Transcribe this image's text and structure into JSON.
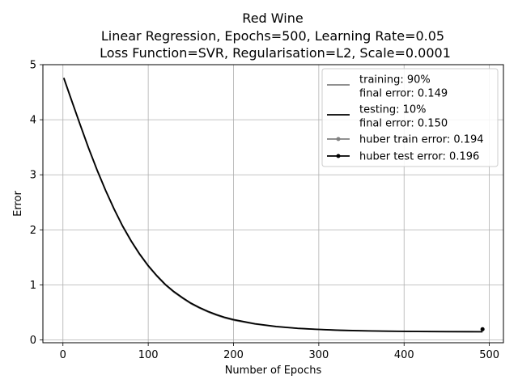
{
  "chart_data": {
    "type": "line",
    "title_lines": [
      "Red Wine",
      "Linear Regression, Epochs=500, Learning Rate=0.05",
      "Loss Function=SVR, Regularisation=L2, Scale=0.0001"
    ],
    "xlabel": "Number of Epochs",
    "ylabel": "Error",
    "xlim": [
      -23.5,
      516.5
    ],
    "ylim": [
      -0.05,
      5.0
    ],
    "x_ticks": [
      0,
      100,
      200,
      300,
      400,
      500
    ],
    "y_ticks": [
      0,
      1,
      2,
      3,
      4,
      5
    ],
    "grid": true,
    "legend_position": "top-right",
    "series": [
      {
        "name": "training: 90%\nfinal error: 0.149",
        "color": "#808080",
        "marker": "none",
        "x": [
          1,
          10,
          20,
          30,
          40,
          50,
          60,
          70,
          80,
          90,
          100,
          110,
          120,
          130,
          140,
          150,
          160,
          170,
          180,
          190,
          200,
          225,
          250,
          275,
          300,
          325,
          350,
          375,
          400,
          425,
          450,
          475,
          492
        ],
        "y": [
          4.75,
          4.35,
          3.91,
          3.48,
          3.08,
          2.71,
          2.37,
          2.06,
          1.79,
          1.55,
          1.34,
          1.16,
          1.0,
          0.87,
          0.76,
          0.66,
          0.58,
          0.51,
          0.45,
          0.4,
          0.36,
          0.29,
          0.24,
          0.21,
          0.19,
          0.175,
          0.166,
          0.16,
          0.156,
          0.153,
          0.151,
          0.15,
          0.149
        ]
      },
      {
        "name": "testing: 10%\nfinal error: 0.150",
        "color": "#000000",
        "marker": "none",
        "x": [
          1,
          10,
          20,
          30,
          40,
          50,
          60,
          70,
          80,
          90,
          100,
          110,
          120,
          130,
          140,
          150,
          160,
          170,
          180,
          190,
          200,
          225,
          250,
          275,
          300,
          325,
          350,
          375,
          400,
          425,
          450,
          475,
          492
        ],
        "y": [
          4.76,
          4.36,
          3.92,
          3.49,
          3.09,
          2.72,
          2.38,
          2.07,
          1.8,
          1.56,
          1.35,
          1.17,
          1.01,
          0.88,
          0.77,
          0.67,
          0.59,
          0.52,
          0.46,
          0.41,
          0.37,
          0.295,
          0.245,
          0.212,
          0.192,
          0.177,
          0.168,
          0.161,
          0.157,
          0.154,
          0.152,
          0.151,
          0.15
        ]
      },
      {
        "name": "huber train error: 0.194",
        "color": "#808080",
        "marker": "dot",
        "x": [
          492
        ],
        "y": [
          0.194
        ]
      },
      {
        "name": "huber test error: 0.196",
        "color": "#000000",
        "marker": "dot",
        "x": [
          492
        ],
        "y": [
          0.196
        ]
      }
    ]
  }
}
